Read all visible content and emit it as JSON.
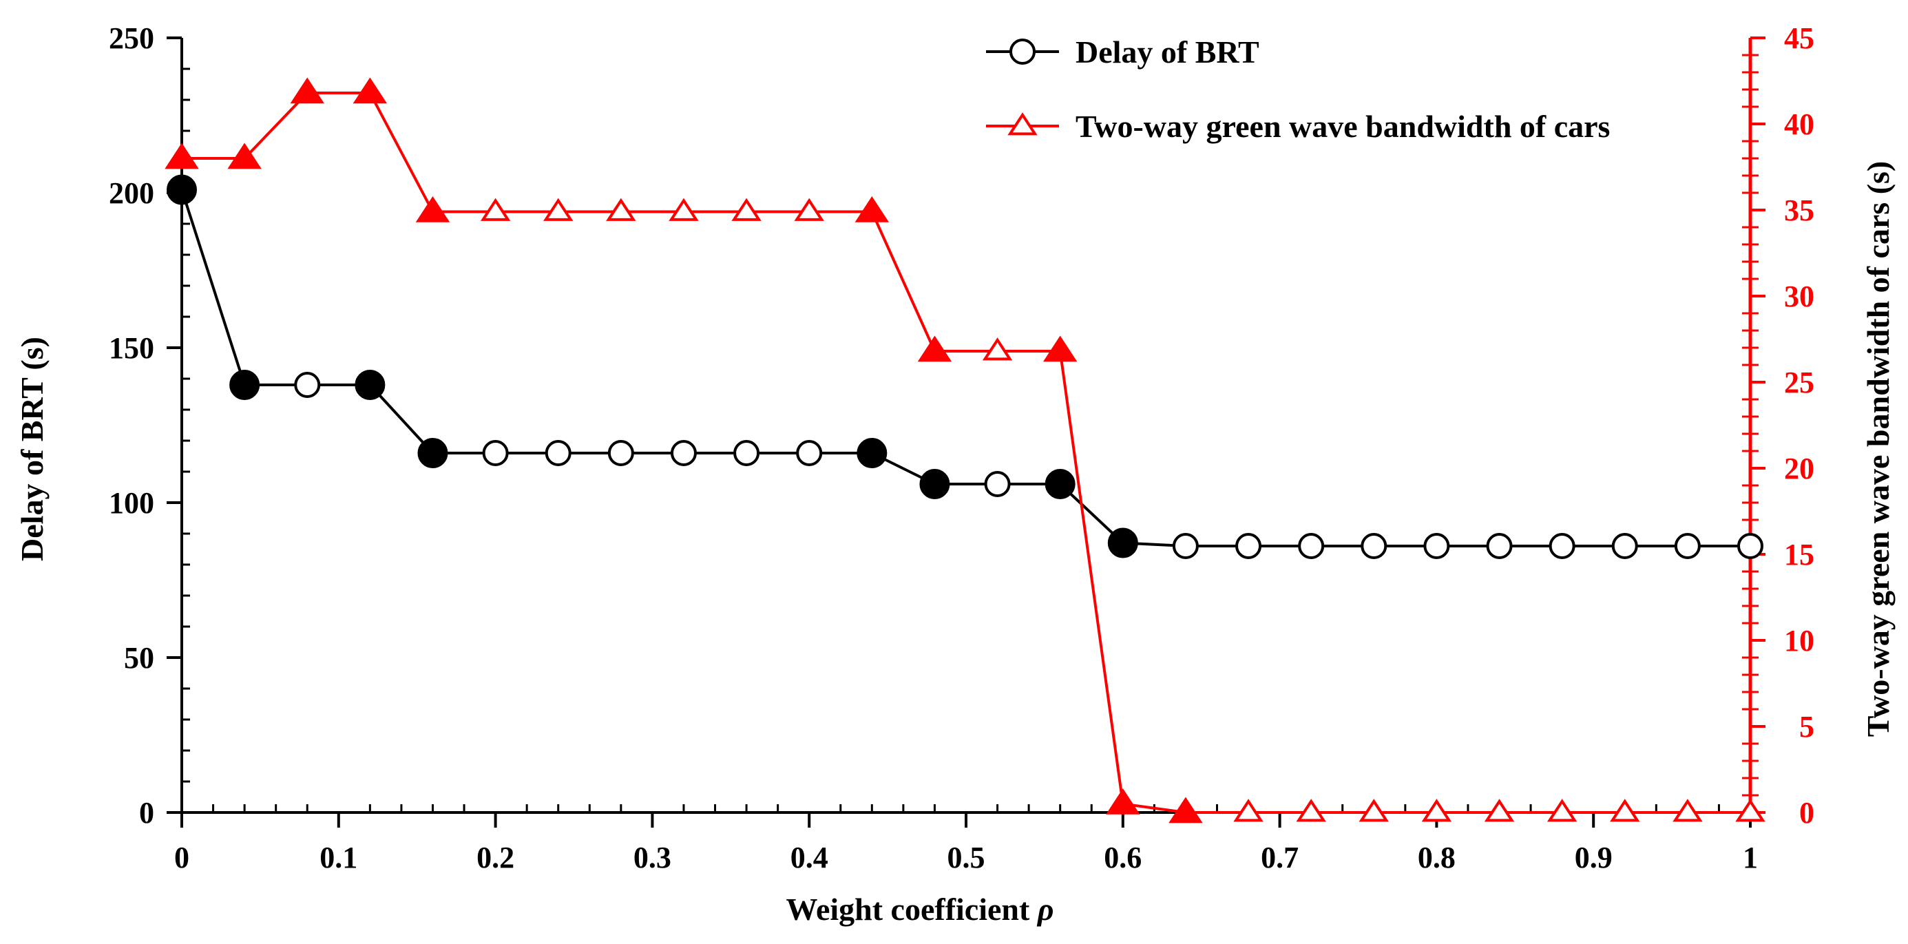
{
  "chart_data": {
    "type": "line",
    "xlabel": "Weight coefficient",
    "xlabel_symbol": "ρ",
    "ylabel_left": "Delay of BRT (s)",
    "ylabel_right": "Two-way green wave bandwidth of cars (s)",
    "xlim": [
      0,
      1
    ],
    "ylim_left": [
      0,
      250
    ],
    "ylim_right": [
      0,
      45
    ],
    "x_ticks": [
      0,
      0.1,
      0.2,
      0.3,
      0.4,
      0.5,
      0.6,
      0.7,
      0.8,
      0.9,
      1
    ],
    "x_tick_labels": [
      "0",
      "0.1",
      "0.2",
      "0.3",
      "0.4",
      "0.5",
      "0.6",
      "0.7",
      "0.8",
      "0.9",
      "1"
    ],
    "y_left_ticks": [
      0,
      50,
      100,
      150,
      200,
      250
    ],
    "y_left_tick_labels": [
      "0",
      "50",
      "100",
      "150",
      "200",
      "250"
    ],
    "y_right_ticks": [
      0,
      5,
      10,
      15,
      20,
      25,
      30,
      35,
      40,
      45
    ],
    "y_right_tick_labels": [
      "0",
      "5",
      "10",
      "15",
      "20",
      "25",
      "30",
      "35",
      "40",
      "45"
    ],
    "legend_position": "top-right",
    "x": [
      0,
      0.04,
      0.08,
      0.12,
      0.16,
      0.2,
      0.24,
      0.28,
      0.32,
      0.36,
      0.4,
      0.44,
      0.48,
      0.52,
      0.56,
      0.6,
      0.64,
      0.68,
      0.72,
      0.76,
      0.8,
      0.84,
      0.88,
      0.92,
      0.96,
      1
    ],
    "series": [
      {
        "name": "Delay of BRT",
        "axis": "left",
        "color": "#000000",
        "marker": "circle",
        "values": [
          201,
          138,
          138,
          138,
          116,
          116,
          116,
          116,
          116,
          116,
          116,
          116,
          106,
          106,
          106,
          87,
          86,
          86,
          86,
          86,
          86,
          86,
          86,
          86,
          86,
          86
        ],
        "filled": [
          true,
          true,
          false,
          true,
          true,
          false,
          false,
          false,
          false,
          false,
          false,
          true,
          true,
          false,
          true,
          true,
          false,
          false,
          false,
          false,
          false,
          false,
          false,
          false,
          false,
          false
        ]
      },
      {
        "name": "Two-way green wave bandwidth of cars",
        "axis": "right",
        "color": "#ff0000",
        "marker": "triangle",
        "values": [
          38,
          38,
          41.8,
          41.8,
          34.9,
          34.9,
          34.9,
          34.9,
          34.9,
          34.9,
          34.9,
          34.9,
          26.8,
          26.8,
          26.8,
          0.5,
          0,
          0,
          0,
          0,
          0,
          0,
          0,
          0,
          0,
          0
        ],
        "filled": [
          true,
          true,
          true,
          true,
          true,
          false,
          false,
          false,
          false,
          false,
          false,
          true,
          true,
          false,
          true,
          true,
          true,
          false,
          false,
          false,
          false,
          false,
          false,
          false,
          false,
          false
        ]
      }
    ]
  }
}
